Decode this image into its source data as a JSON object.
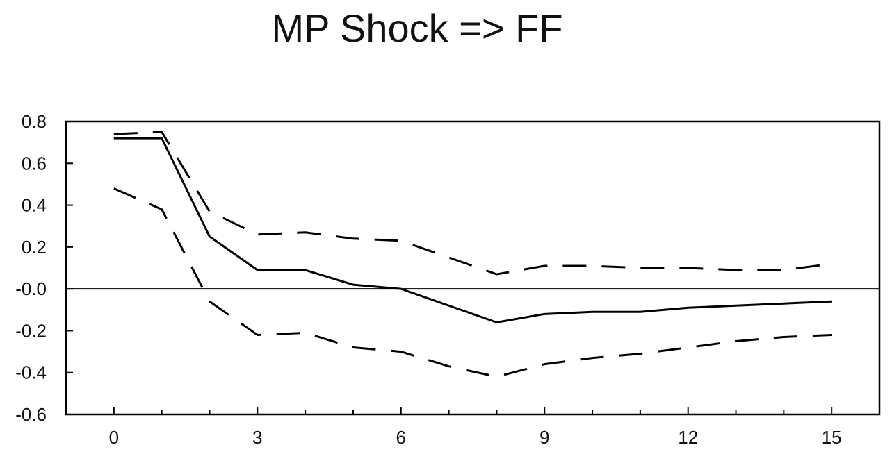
{
  "chart_data": {
    "type": "line",
    "title": "MP Shock => FF",
    "xlabel": "",
    "ylabel": "",
    "x": [
      0,
      1,
      2,
      3,
      4,
      5,
      6,
      7,
      8,
      9,
      10,
      11,
      12,
      13,
      14,
      15
    ],
    "xlim": [
      -1,
      16
    ],
    "ylim": [
      -0.6,
      0.8
    ],
    "x_ticks": [
      0,
      3,
      6,
      9,
      12,
      15
    ],
    "x_tick_labels": [
      "0",
      "3",
      "6",
      "9",
      "12",
      "15"
    ],
    "y_ticks": [
      0.8,
      0.6,
      0.4,
      0.2,
      0.0,
      -0.2,
      -0.4,
      -0.6
    ],
    "y_tick_labels": [
      "0.8",
      "0.6",
      "0.4",
      "0.2",
      "-0.0",
      "-0.2",
      "-0.4",
      "-0.6"
    ],
    "zero_line": true,
    "series": [
      {
        "style": "solid",
        "color": "#000000",
        "values": [
          0.72,
          0.72,
          0.25,
          0.09,
          0.09,
          0.02,
          0.0,
          -0.08,
          -0.16,
          -0.12,
          -0.11,
          -0.11,
          -0.09,
          -0.08,
          -0.07,
          -0.06
        ]
      },
      {
        "style": "dashed",
        "color": "#000000",
        "values": [
          0.74,
          0.75,
          0.37,
          0.26,
          0.27,
          0.24,
          0.23,
          0.15,
          0.07,
          0.11,
          0.11,
          0.1,
          0.1,
          0.09,
          0.09,
          0.12
        ]
      },
      {
        "style": "dashed",
        "color": "#000000",
        "values": [
          0.48,
          0.38,
          -0.06,
          -0.22,
          -0.21,
          -0.28,
          -0.3,
          -0.37,
          -0.42,
          -0.36,
          -0.33,
          -0.31,
          -0.28,
          -0.25,
          -0.23,
          -0.22
        ]
      }
    ]
  }
}
